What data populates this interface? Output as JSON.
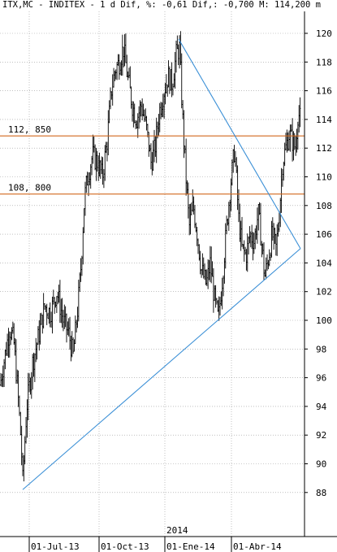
{
  "header": {
    "text": "ITX,MC - INDITEX - 1 d Dif, %: -0,61 Dif,: -0,700 M: 114,200 m"
  },
  "chart_data": {
    "type": "bar",
    "title": "ITX,MC - INDITEX - 1 d Dif, %: -0,61 Dif,: -0,700 M: 114,200 m",
    "xlabel": "",
    "ylabel": "",
    "ylim": [
      86.5,
      121
    ],
    "y_ticks": [
      88,
      90,
      92,
      94,
      96,
      98,
      100,
      102,
      104,
      106,
      108,
      110,
      112,
      114,
      116,
      118,
      120
    ],
    "x_range": [
      0,
      360
    ],
    "x_labels": [
      {
        "x": 36,
        "label": "01-Jul-13"
      },
      {
        "x": 122,
        "label": "01-Oct-13"
      },
      {
        "x": 203,
        "label": "01-Ene-14"
      },
      {
        "x": 285,
        "label": "01-Abr-14"
      }
    ],
    "year_marker": {
      "x": 203,
      "label": "2014"
    },
    "horizontal_lines": [
      {
        "value": 112.85,
        "label": "112, 850",
        "color": "#d2691e"
      },
      {
        "value": 108.8,
        "label": "108, 800",
        "color": "#d2691e"
      }
    ],
    "trend_lines": [
      {
        "points": [
          [
            220,
            119.6
          ],
          [
            370,
            105
          ]
        ],
        "color": "#3a8fd6"
      },
      {
        "points": [
          [
            28,
            88.2
          ],
          [
            370,
            105
          ]
        ],
        "color": "#3a8fd6"
      }
    ],
    "anchors": [
      {
        "x": 0,
        "y": 95.5
      },
      {
        "x": 6,
        "y": 97.5
      },
      {
        "x": 12,
        "y": 99.5
      },
      {
        "x": 17,
        "y": 98.5
      },
      {
        "x": 22,
        "y": 95
      },
      {
        "x": 26,
        "y": 91.5
      },
      {
        "x": 28,
        "y": 88.8
      },
      {
        "x": 33,
        "y": 94
      },
      {
        "x": 40,
        "y": 97
      },
      {
        "x": 48,
        "y": 99
      },
      {
        "x": 55,
        "y": 101
      },
      {
        "x": 62,
        "y": 100.5
      },
      {
        "x": 70,
        "y": 102
      },
      {
        "x": 78,
        "y": 100
      },
      {
        "x": 85,
        "y": 99
      },
      {
        "x": 90,
        "y": 97.5
      },
      {
        "x": 96,
        "y": 101
      },
      {
        "x": 100,
        "y": 104
      },
      {
        "x": 104,
        "y": 108.5
      },
      {
        "x": 108,
        "y": 110
      },
      {
        "x": 114,
        "y": 111.5
      },
      {
        "x": 120,
        "y": 111
      },
      {
        "x": 126,
        "y": 110
      },
      {
        "x": 132,
        "y": 112.5
      },
      {
        "x": 137,
        "y": 116
      },
      {
        "x": 142,
        "y": 117.5
      },
      {
        "x": 147,
        "y": 118
      },
      {
        "x": 152,
        "y": 119
      },
      {
        "x": 157,
        "y": 117
      },
      {
        "x": 163,
        "y": 115
      },
      {
        "x": 168,
        "y": 114
      },
      {
        "x": 174,
        "y": 115
      },
      {
        "x": 180,
        "y": 113.5
      },
      {
        "x": 186,
        "y": 111
      },
      {
        "x": 191,
        "y": 112
      },
      {
        "x": 196,
        "y": 114.5
      },
      {
        "x": 202,
        "y": 116
      },
      {
        "x": 207,
        "y": 117
      },
      {
        "x": 212,
        "y": 116.5
      },
      {
        "x": 217,
        "y": 118.5
      },
      {
        "x": 221,
        "y": 119
      },
      {
        "x": 225,
        "y": 114
      },
      {
        "x": 229,
        "y": 110
      },
      {
        "x": 233,
        "y": 106.5
      },
      {
        "x": 238,
        "y": 108
      },
      {
        "x": 243,
        "y": 106
      },
      {
        "x": 248,
        "y": 103.5
      },
      {
        "x": 254,
        "y": 102.5
      },
      {
        "x": 259,
        "y": 104
      },
      {
        "x": 264,
        "y": 101.5
      },
      {
        "x": 269,
        "y": 100
      },
      {
        "x": 274,
        "y": 103
      },
      {
        "x": 279,
        "y": 106.5
      },
      {
        "x": 284,
        "y": 109.5
      },
      {
        "x": 289,
        "y": 112
      },
      {
        "x": 294,
        "y": 107
      },
      {
        "x": 298,
        "y": 105
      },
      {
        "x": 303,
        "y": 104.5
      },
      {
        "x": 308,
        "y": 106
      },
      {
        "x": 313,
        "y": 105.5
      },
      {
        "x": 318,
        "y": 107.5
      },
      {
        "x": 322,
        "y": 105.5
      },
      {
        "x": 326,
        "y": 103
      },
      {
        "x": 331,
        "y": 104.5
      },
      {
        "x": 335,
        "y": 106
      },
      {
        "x": 340,
        "y": 105
      },
      {
        "x": 344,
        "y": 107.5
      },
      {
        "x": 348,
        "y": 111
      },
      {
        "x": 352,
        "y": 112
      },
      {
        "x": 356,
        "y": 113
      },
      {
        "x": 360,
        "y": 112.5
      },
      {
        "x": 364,
        "y": 112
      },
      {
        "x": 367,
        "y": 114.5
      },
      {
        "x": 370,
        "y": 114
      }
    ],
    "grid": true,
    "grid_style": "dotted",
    "colors": {
      "background": "#ffffff",
      "price_bars": "#000000",
      "grid": "#9a9a9a",
      "support_resistance": "#d2691e",
      "trendline": "#3a8fd6",
      "axis": "#000000"
    }
  }
}
